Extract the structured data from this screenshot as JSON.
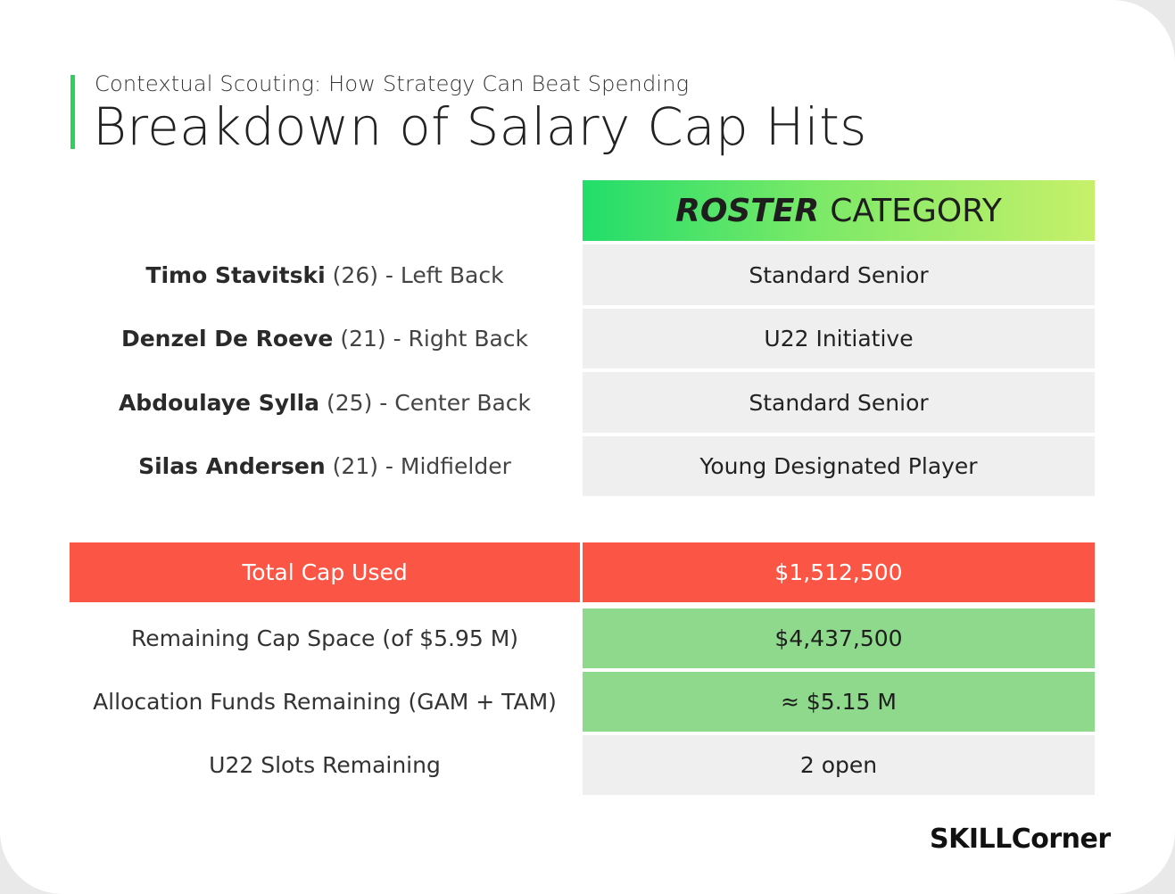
{
  "header": {
    "subtitle": "Contextual Scouting: How Strategy Can Beat Spending",
    "title": "Breakdown of Salary Cap Hits"
  },
  "table_header": {
    "strong": "ROSTER",
    "light": "CATEGORY"
  },
  "players": [
    {
      "name": "Timo Stavitski",
      "detail": "(26) - Left Back",
      "category": "Standard Senior"
    },
    {
      "name": "Denzel De Roeve",
      "detail": "(21) - Right Back",
      "category": "U22 Initiative"
    },
    {
      "name": "Abdoulaye Sylla",
      "detail": "(25) - Center Back",
      "category": "Standard Senior"
    },
    {
      "name": "Silas Andersen",
      "detail": "(21) - Midfielder",
      "category": "Young Designated Player"
    }
  ],
  "summary": {
    "total": {
      "label": "Total Cap Used",
      "value": "$1,512,500"
    },
    "rows": [
      {
        "label": "Remaining Cap Space (of $5.95 M)",
        "value": "$4,437,500"
      },
      {
        "label": "Allocation Funds Remaining (GAM + TAM)",
        "value": "≈ $5.15 M"
      },
      {
        "label": "U22 Slots Remaining",
        "value": "2 open"
      }
    ]
  },
  "brand": "SKILLCorner",
  "colors": {
    "accent_green": "#2ed15c",
    "total_red": "#fb5645",
    "value_green": "#8fd98c",
    "cell_gray": "#efefef"
  }
}
